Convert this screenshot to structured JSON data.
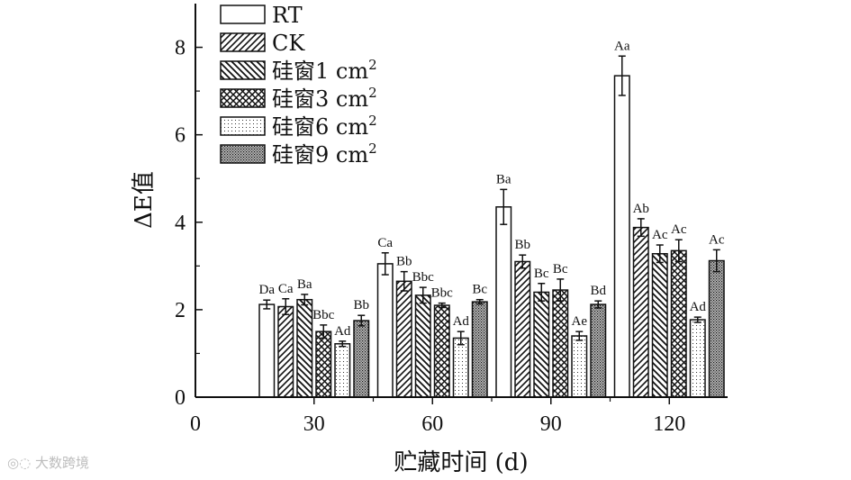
{
  "chart_data": {
    "type": "bar",
    "xlabel": "贮藏时间 (d)",
    "ylabel": "ΔE值",
    "ylim": [
      0,
      9
    ],
    "yticks": [
      0,
      2,
      4,
      6,
      8
    ],
    "x_origin_label": "0",
    "categories": [
      "30",
      "60",
      "90",
      "120"
    ],
    "legend_position": "top-left",
    "grid": false,
    "series": [
      {
        "name": "RT",
        "superscript": "",
        "pattern": "none",
        "values": [
          2.12,
          3.05,
          4.35,
          7.35
        ],
        "errors": [
          0.1,
          0.25,
          0.4,
          0.45
        ],
        "labels": [
          "Da",
          "Ca",
          "Ba",
          "Aa"
        ]
      },
      {
        "name": "CK",
        "superscript": "",
        "pattern": "diag",
        "values": [
          2.07,
          2.65,
          3.1,
          3.88
        ],
        "errors": [
          0.18,
          0.22,
          0.15,
          0.2
        ],
        "labels": [
          "Ca",
          "Bb",
          "Bb",
          "Ab"
        ]
      },
      {
        "name": "硅窗1 cm",
        "superscript": "2",
        "pattern": "backdiag",
        "values": [
          2.23,
          2.33,
          2.4,
          3.28
        ],
        "errors": [
          0.12,
          0.18,
          0.2,
          0.2
        ],
        "labels": [
          "Ba",
          "Bbc",
          "Bc",
          "Ac"
        ]
      },
      {
        "name": "硅窗3 cm",
        "superscript": "2",
        "pattern": "cross",
        "values": [
          1.5,
          2.1,
          2.45,
          3.35
        ],
        "errors": [
          0.15,
          0.05,
          0.25,
          0.25
        ],
        "labels": [
          "Bbc",
          "Bbc",
          "Bc",
          "Ac"
        ]
      },
      {
        "name": "硅窗6 cm",
        "superscript": "2",
        "pattern": "dots",
        "values": [
          1.22,
          1.35,
          1.4,
          1.77
        ],
        "errors": [
          0.06,
          0.15,
          0.1,
          0.06
        ],
        "labels": [
          "Ad",
          "Ad",
          "Ae",
          "Ad"
        ]
      },
      {
        "name": "硅窗9 cm",
        "superscript": "2",
        "pattern": "densedots",
        "values": [
          1.75,
          2.18,
          2.12,
          3.12
        ],
        "errors": [
          0.12,
          0.05,
          0.08,
          0.25
        ],
        "labels": [
          "Bb",
          "Bc",
          "Bd",
          "Ac"
        ]
      }
    ]
  },
  "watermark": {
    "text": "大数跨境"
  }
}
